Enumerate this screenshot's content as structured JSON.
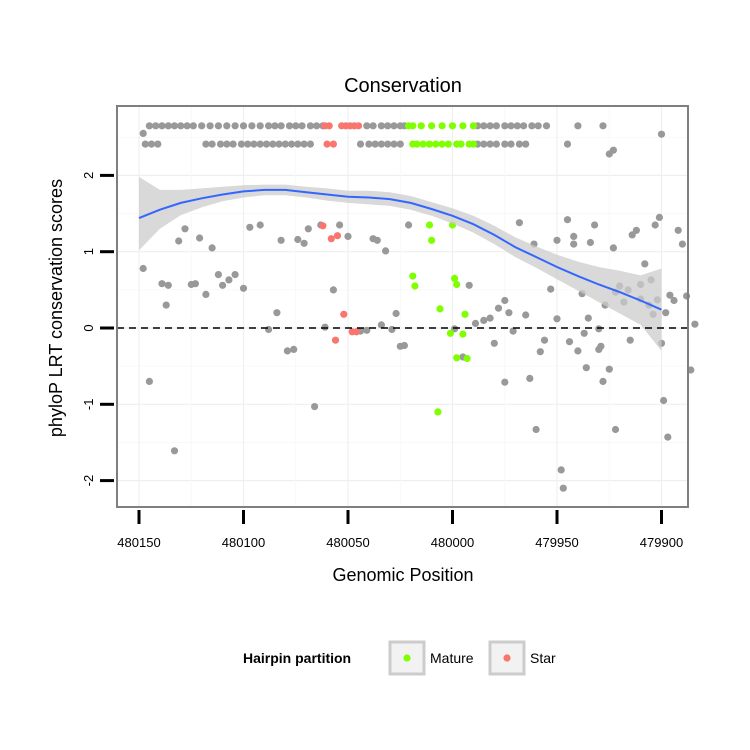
{
  "chart_data": {
    "type": "scatter",
    "title": "Conservation",
    "xlabel": "Genomic Position",
    "ylabel": "phyloP LRT conservation scores",
    "x_reversed": true,
    "xlim": [
      480152,
      479898
    ],
    "ylim": [
      -2.3,
      2.9
    ],
    "x_ticks": [
      480150,
      480100,
      480050,
      480000,
      479950,
      479900
    ],
    "y_ticks": [
      -2,
      -1,
      0,
      1,
      2
    ],
    "reference_line_y": 0,
    "grid": true,
    "legend": {
      "title": "Hairpin partition",
      "position": "bottom",
      "entries": [
        {
          "label": "Mature",
          "color": "#7fff00"
        },
        {
          "label": "Star",
          "color": "#f8766d"
        }
      ]
    },
    "colors": {
      "other": "#999999",
      "smooth_line": "#3366ff",
      "ribbon": "#cccccc"
    },
    "smooth": {
      "x": [
        480150,
        480140,
        480130,
        480120,
        480110,
        480100,
        480090,
        480080,
        480070,
        480060,
        480050,
        480040,
        480030,
        480020,
        480010,
        480000,
        479990,
        479980,
        479970,
        479960,
        479950,
        479940,
        479930,
        479920,
        479910,
        479900
      ],
      "y": [
        1.44,
        1.55,
        1.64,
        1.7,
        1.75,
        1.79,
        1.81,
        1.81,
        1.78,
        1.75,
        1.72,
        1.71,
        1.69,
        1.64,
        1.56,
        1.47,
        1.36,
        1.22,
        1.06,
        0.93,
        0.8,
        0.68,
        0.57,
        0.47,
        0.36,
        0.24
      ],
      "ymin": [
        1.02,
        1.3,
        1.48,
        1.58,
        1.66,
        1.71,
        1.74,
        1.74,
        1.71,
        1.67,
        1.64,
        1.62,
        1.6,
        1.55,
        1.47,
        1.37,
        1.25,
        1.1,
        0.93,
        0.79,
        0.64,
        0.49,
        0.34,
        0.19,
        0.04,
        -0.3
      ],
      "ymax": [
        1.98,
        1.81,
        1.81,
        1.83,
        1.85,
        1.87,
        1.88,
        1.88,
        1.85,
        1.83,
        1.8,
        1.8,
        1.78,
        1.73,
        1.65,
        1.57,
        1.47,
        1.34,
        1.19,
        1.07,
        0.96,
        0.87,
        0.8,
        0.75,
        0.69,
        0.78
      ]
    },
    "series": [
      {
        "name": "Mature",
        "points": [
          [
            480021,
            2.65
          ],
          [
            480019,
            2.65
          ],
          [
            480015,
            2.65
          ],
          [
            480010,
            2.65
          ],
          [
            480005,
            2.65
          ],
          [
            480000,
            2.65
          ],
          [
            479995,
            2.65
          ],
          [
            479990,
            2.65
          ],
          [
            480019,
            2.41
          ],
          [
            480017,
            2.41
          ],
          [
            480014,
            2.41
          ],
          [
            480011,
            2.41
          ],
          [
            480008,
            2.41
          ],
          [
            480005,
            2.41
          ],
          [
            480002,
            2.41
          ],
          [
            479998,
            2.41
          ],
          [
            479996,
            2.41
          ],
          [
            479992,
            2.41
          ],
          [
            479990,
            2.41
          ],
          [
            480011,
            1.35
          ],
          [
            480000,
            1.35
          ],
          [
            480010,
            1.15
          ],
          [
            480019,
            0.68
          ],
          [
            480018,
            0.55
          ],
          [
            479999,
            0.65
          ],
          [
            479998,
            0.57
          ],
          [
            480006,
            0.25
          ],
          [
            479994,
            0.18
          ],
          [
            480001,
            -0.07
          ],
          [
            479995,
            -0.08
          ],
          [
            479998,
            -0.39
          ],
          [
            479993,
            -0.4
          ],
          [
            480007,
            -1.1
          ]
        ]
      },
      {
        "name": "Star",
        "points": [
          [
            480061,
            2.65
          ],
          [
            480059,
            2.65
          ],
          [
            480053,
            2.65
          ],
          [
            480051,
            2.65
          ],
          [
            480049,
            2.65
          ],
          [
            480047,
            2.65
          ],
          [
            480045,
            2.65
          ],
          [
            480060,
            2.41
          ],
          [
            480057,
            2.41
          ],
          [
            480062,
            1.34
          ],
          [
            480058,
            1.17
          ],
          [
            480055,
            1.21
          ],
          [
            480052,
            0.18
          ],
          [
            480048,
            -0.05
          ],
          [
            480046,
            -0.05
          ],
          [
            480056,
            -0.16
          ]
        ]
      }
    ],
    "other_points": [
      [
        480145,
        2.65
      ],
      [
        480142,
        2.65
      ],
      [
        480139,
        2.65
      ],
      [
        480136,
        2.65
      ],
      [
        480133,
        2.65
      ],
      [
        480130,
        2.65
      ],
      [
        480127,
        2.65
      ],
      [
        480124,
        2.65
      ],
      [
        480120,
        2.65
      ],
      [
        480116,
        2.65
      ],
      [
        480112,
        2.65
      ],
      [
        480108,
        2.65
      ],
      [
        480104,
        2.65
      ],
      [
        480100,
        2.65
      ],
      [
        480096,
        2.65
      ],
      [
        480092,
        2.65
      ],
      [
        480088,
        2.65
      ],
      [
        480085,
        2.65
      ],
      [
        480082,
        2.65
      ],
      [
        480078,
        2.65
      ],
      [
        480075,
        2.65
      ],
      [
        480072,
        2.65
      ],
      [
        480068,
        2.65
      ],
      [
        480065,
        2.65
      ],
      [
        480062,
        2.65
      ],
      [
        480041,
        2.65
      ],
      [
        480038,
        2.65
      ],
      [
        480034,
        2.65
      ],
      [
        480031,
        2.65
      ],
      [
        480028,
        2.65
      ],
      [
        480025,
        2.65
      ],
      [
        480023,
        2.65
      ],
      [
        479988,
        2.65
      ],
      [
        479985,
        2.65
      ],
      [
        479982,
        2.65
      ],
      [
        479979,
        2.65
      ],
      [
        479975,
        2.65
      ],
      [
        479972,
        2.65
      ],
      [
        479969,
        2.65
      ],
      [
        479966,
        2.65
      ],
      [
        479962,
        2.65
      ],
      [
        479959,
        2.65
      ],
      [
        479955,
        2.65
      ],
      [
        479940,
        2.65
      ],
      [
        479928,
        2.65
      ],
      [
        480148,
        2.55
      ],
      [
        480147,
        2.41
      ],
      [
        480144,
        2.41
      ],
      [
        480141,
        2.41
      ],
      [
        480118,
        2.41
      ],
      [
        480115,
        2.41
      ],
      [
        480111,
        2.41
      ],
      [
        480108,
        2.41
      ],
      [
        480105,
        2.41
      ],
      [
        480101,
        2.41
      ],
      [
        480098,
        2.41
      ],
      [
        480095,
        2.41
      ],
      [
        480092,
        2.41
      ],
      [
        480089,
        2.41
      ],
      [
        480086,
        2.41
      ],
      [
        480083,
        2.41
      ],
      [
        480080,
        2.41
      ],
      [
        480077,
        2.41
      ],
      [
        480074,
        2.41
      ],
      [
        480071,
        2.41
      ],
      [
        480068,
        2.41
      ],
      [
        480044,
        2.41
      ],
      [
        480040,
        2.41
      ],
      [
        480037,
        2.41
      ],
      [
        480034,
        2.41
      ],
      [
        480031,
        2.41
      ],
      [
        480028,
        2.41
      ],
      [
        480025,
        2.41
      ],
      [
        479988,
        2.41
      ],
      [
        479985,
        2.41
      ],
      [
        479982,
        2.41
      ],
      [
        479979,
        2.41
      ],
      [
        479975,
        2.41
      ],
      [
        479972,
        2.41
      ],
      [
        479968,
        2.41
      ],
      [
        479965,
        2.41
      ],
      [
        479945,
        2.41
      ],
      [
        479925,
        2.28
      ],
      [
        479923,
        2.33
      ],
      [
        479900,
        2.54
      ],
      [
        480148,
        0.78
      ],
      [
        480145,
        -0.7
      ],
      [
        480139,
        0.58
      ],
      [
        480137,
        0.3
      ],
      [
        480136,
        0.56
      ],
      [
        480133,
        -1.61
      ],
      [
        480131,
        1.14
      ],
      [
        480128,
        1.3
      ],
      [
        480125,
        0.57
      ],
      [
        480123,
        0.58
      ],
      [
        480121,
        1.18
      ],
      [
        480118,
        0.44
      ],
      [
        480115,
        1.05
      ],
      [
        480112,
        0.7
      ],
      [
        480110,
        0.56
      ],
      [
        480107,
        0.63
      ],
      [
        480104,
        0.7
      ],
      [
        480100,
        0.52
      ],
      [
        480097,
        1.32
      ],
      [
        480092,
        1.35
      ],
      [
        480088,
        -0.02
      ],
      [
        480084,
        0.2
      ],
      [
        480082,
        1.15
      ],
      [
        480079,
        -0.3
      ],
      [
        480076,
        -0.28
      ],
      [
        480074,
        1.16
      ],
      [
        480071,
        1.11
      ],
      [
        480069,
        1.3
      ],
      [
        480066,
        -1.03
      ],
      [
        480063,
        1.35
      ],
      [
        480061,
        0.01
      ],
      [
        480057,
        0.5
      ],
      [
        480054,
        1.35
      ],
      [
        480050,
        1.2
      ],
      [
        480044,
        -0.04
      ],
      [
        480041,
        -0.03
      ],
      [
        480038,
        1.17
      ],
      [
        480036,
        1.15
      ],
      [
        480034,
        0.04
      ],
      [
        480032,
        1.01
      ],
      [
        480029,
        -0.02
      ],
      [
        480027,
        0.19
      ],
      [
        480025,
        -0.24
      ],
      [
        480023,
        -0.23
      ],
      [
        480021,
        1.35
      ],
      [
        479999,
        -0.01
      ],
      [
        479995,
        -0.38
      ],
      [
        479992,
        0.56
      ],
      [
        479989,
        0.06
      ],
      [
        479985,
        0.1
      ],
      [
        479982,
        0.13
      ],
      [
        479980,
        -0.2
      ],
      [
        479978,
        0.26
      ],
      [
        479975,
        0.36
      ],
      [
        479973,
        0.2
      ],
      [
        479971,
        -0.04
      ],
      [
        479968,
        1.38
      ],
      [
        479965,
        0.17
      ],
      [
        479963,
        -0.66
      ],
      [
        479961,
        1.1
      ],
      [
        479958,
        -0.31
      ],
      [
        479956,
        -0.16
      ],
      [
        479953,
        0.51
      ],
      [
        479950,
        0.12
      ],
      [
        479948,
        -1.86
      ],
      [
        479947,
        -2.1
      ],
      [
        479944,
        -0.18
      ],
      [
        479942,
        1.1
      ],
      [
        479940,
        -0.3
      ],
      [
        479938,
        0.45
      ],
      [
        479937,
        -0.07
      ],
      [
        479936,
        -0.52
      ],
      [
        479934,
        1.12
      ],
      [
        479932,
        1.35
      ],
      [
        479930,
        -0.01
      ],
      [
        479929,
        -0.24
      ],
      [
        479927,
        0.3
      ],
      [
        479925,
        -0.54
      ],
      [
        479923,
        1.05
      ],
      [
        479922,
        0.47
      ],
      [
        479920,
        0.55
      ],
      [
        479918,
        0.34
      ],
      [
        479916,
        0.5
      ],
      [
        479914,
        1.22
      ],
      [
        479912,
        1.28
      ],
      [
        479910,
        0.57
      ],
      [
        479908,
        0.84
      ],
      [
        479906,
        0.3
      ],
      [
        479904,
        0.18
      ],
      [
        479902,
        0.37
      ],
      [
        479900,
        -0.2
      ],
      [
        479898,
        0.2
      ],
      [
        479945,
        1.42
      ],
      [
        479942,
        1.2
      ],
      [
        479950,
        1.15
      ],
      [
        479960,
        -1.33
      ],
      [
        479975,
        -0.71
      ],
      [
        479928,
        -0.7
      ],
      [
        479922,
        -1.33
      ],
      [
        479915,
        -0.16
      ],
      [
        479910,
        0.38
      ],
      [
        479905,
        0.63
      ],
      [
        479903,
        1.35
      ],
      [
        479901,
        1.45
      ],
      [
        479899,
        -0.95
      ],
      [
        479897,
        -1.43
      ],
      [
        479930,
        -0.28
      ],
      [
        479896,
        0.43
      ],
      [
        479894,
        0.36
      ],
      [
        479892,
        1.28
      ],
      [
        479890,
        1.1
      ],
      [
        479888,
        0.42
      ],
      [
        479886,
        -0.55
      ],
      [
        479884,
        0.05
      ],
      [
        479935,
        0.13
      ]
    ]
  }
}
